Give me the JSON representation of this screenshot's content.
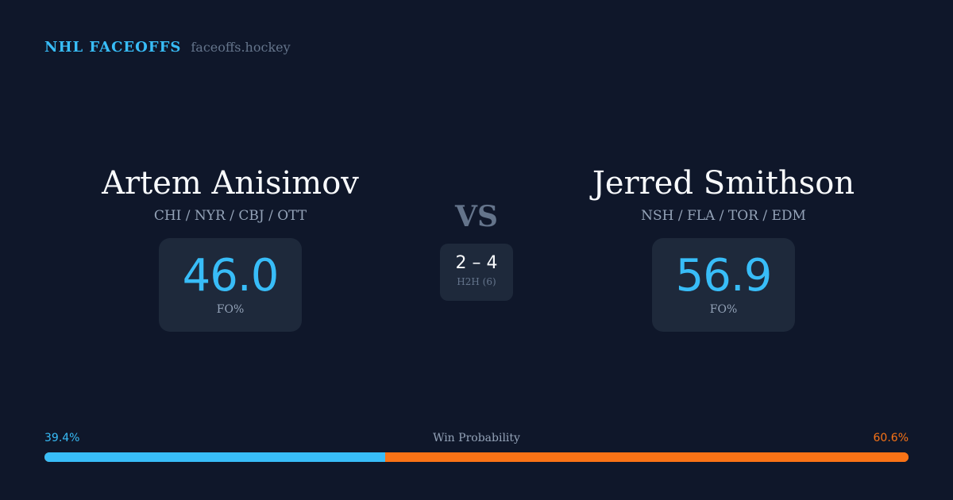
{
  "header": {
    "brand": "NHL FACEOFFS",
    "url": "faceoffs.hockey"
  },
  "players": [
    {
      "name": "Artem Anisimov",
      "teams": "CHI / NYR / CBJ / OTT",
      "fo_pct": "46.0",
      "fo_label": "FO%"
    },
    {
      "name": "Jerred Smithson",
      "teams": "NSH / FLA / TOR / EDM",
      "fo_pct": "56.9",
      "fo_label": "FO%"
    }
  ],
  "versus": {
    "label": "VS",
    "h2h_score": "2 – 4",
    "h2h_label": "H2H (6)"
  },
  "win_probability": {
    "title": "Win Probability",
    "left_label": "39.4%",
    "right_label": "60.6%",
    "left_value": 39.4,
    "right_value": 60.6,
    "left_color": "#38bdf8",
    "right_color": "#f97316"
  }
}
